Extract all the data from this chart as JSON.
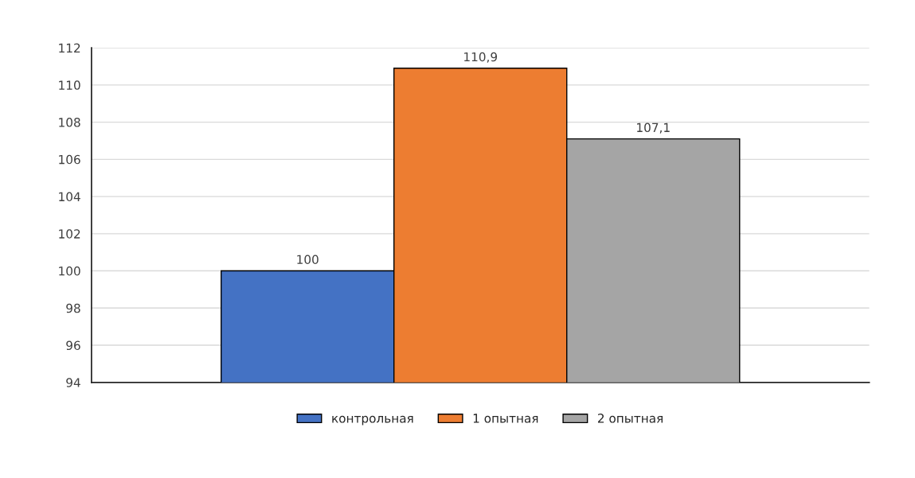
{
  "chart_data": {
    "type": "bar",
    "categories": [
      null
    ],
    "series": [
      {
        "name": "контрольная",
        "color": "#4472c4",
        "values": [
          100
        ],
        "value_labels": [
          "100"
        ]
      },
      {
        "name": "1 опытная",
        "color": "#ed7d31",
        "values": [
          110.9
        ],
        "value_labels": [
          "110,9"
        ]
      },
      {
        "name": "2 опытная",
        "color": "#a5a5a5",
        "values": [
          107.1
        ],
        "value_labels": [
          "107,1"
        ]
      }
    ],
    "ylim": [
      94,
      112
    ],
    "yticks": [
      94,
      96,
      98,
      100,
      102,
      104,
      106,
      108,
      110,
      112
    ],
    "grid": "y",
    "legend": "bottom"
  }
}
